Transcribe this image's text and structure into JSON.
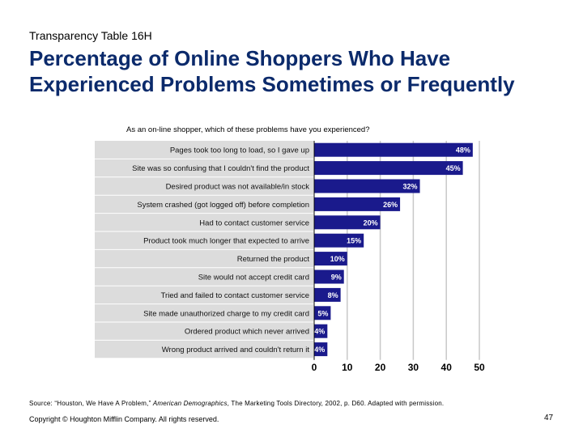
{
  "slide": {
    "label": "Transparency Table 16H",
    "title": "Percentage of Online Shoppers Who Have Experienced Problems Sometimes or Frequently",
    "source_prefix": "Source: “Houston, We Have A Problem,” ",
    "source_italic": "American Demographics",
    "source_suffix": ", The Marketing Tools Directory, 2002, p. D60.  Adapted with permission.",
    "copyright": "Copyright © Houghton Mifflin Company. All rights reserved.",
    "page_number": "47"
  },
  "chart_data": {
    "type": "bar",
    "orientation": "horizontal",
    "title": "As an on-line shopper, which of these problems have you experienced?",
    "categories": [
      "Pages took too long to load, so I gave up",
      "Site was so confusing that I couldn't find the product",
      "Desired product was not available/in stock",
      "System crashed (got logged off) before completion",
      "Had to contact customer service",
      "Product took much longer that expected to arrive",
      "Returned the product",
      "Site would not accept credit card",
      "Tried and failed to contact customer service",
      "Site made unauthorized charge to my credit card",
      "Ordered product which never arrived",
      "Wrong product arrived and couldn't return it"
    ],
    "values": [
      48,
      45,
      32,
      26,
      20,
      15,
      10,
      9,
      8,
      5,
      4,
      4
    ],
    "value_labels": [
      "48%",
      "45%",
      "32%",
      "26%",
      "20%",
      "15%",
      "10%",
      "9%",
      "8%",
      "5%",
      "4%",
      "4%"
    ],
    "xlim": [
      0,
      50
    ],
    "xticks": [
      0,
      10,
      20,
      30,
      40,
      50
    ],
    "grid": true,
    "colors": {
      "bar": "#1a1a8c",
      "label_background": "#dcdcdc",
      "gridline": "#c8c8c8",
      "value_label": "#ffffff"
    }
  }
}
